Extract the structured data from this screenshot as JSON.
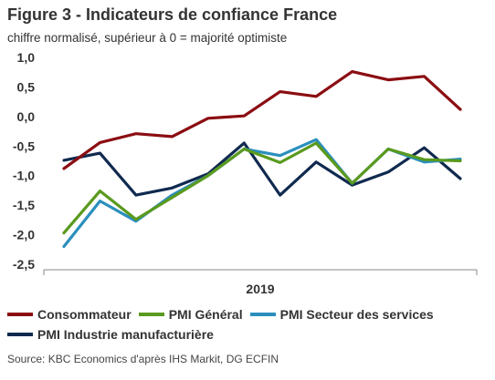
{
  "header": {
    "title": "Figure 3 - Indicateurs de confiance France",
    "subtitle": "chiffre normalisé, supérieur à 0 = majorité optimiste"
  },
  "source": "Source: KBC Economics d'après IHS Markit, DG ECFIN",
  "chart_data": {
    "type": "line",
    "title": "Figure 3 - Indicateurs de confiance France",
    "subtitle": "chiffre normalisé, supérieur à 0 = majorité optimiste",
    "xlabel": "",
    "ylabel": "",
    "x_tick_labels": [
      "2019"
    ],
    "y_ticks": [
      "1,0",
      "0,5",
      "0,0",
      "-0,5",
      "-1,0",
      "-1,5",
      "-2,0",
      "-2,5"
    ],
    "y_tick_values": [
      1.0,
      0.5,
      0.0,
      -0.5,
      -1.0,
      -1.5,
      -2.0,
      -2.5
    ],
    "ylim": [
      -2.5,
      1.0
    ],
    "grid": false,
    "legend_position": "bottom",
    "series": [
      {
        "name": "Consommateur",
        "color": "#8b0d12",
        "values": [
          -0.88,
          -0.44,
          -0.29,
          -0.34,
          -0.03,
          0.01,
          0.42,
          0.34,
          0.76,
          0.62,
          0.68,
          0.12
        ]
      },
      {
        "name": "PMI Général",
        "color": "#5a9a1e",
        "values": [
          -1.97,
          -1.26,
          -1.74,
          -1.37,
          -1.0,
          -0.55,
          -0.78,
          -0.45,
          -1.13,
          -0.55,
          -0.73,
          -0.75
        ]
      },
      {
        "name": "PMI Secteur des services",
        "color": "#2a8fbd",
        "values": [
          -2.2,
          -1.43,
          -1.77,
          -1.33,
          -1.0,
          -0.55,
          -0.66,
          -0.39,
          -1.13,
          -0.55,
          -0.77,
          -0.72
        ]
      },
      {
        "name": "PMI Industrie manufacturière",
        "color": "#102a4f",
        "values": [
          -0.74,
          -0.62,
          -1.33,
          -1.21,
          -0.97,
          -0.45,
          -1.33,
          -0.77,
          -1.16,
          -0.94,
          -0.53,
          -1.05
        ]
      }
    ]
  }
}
